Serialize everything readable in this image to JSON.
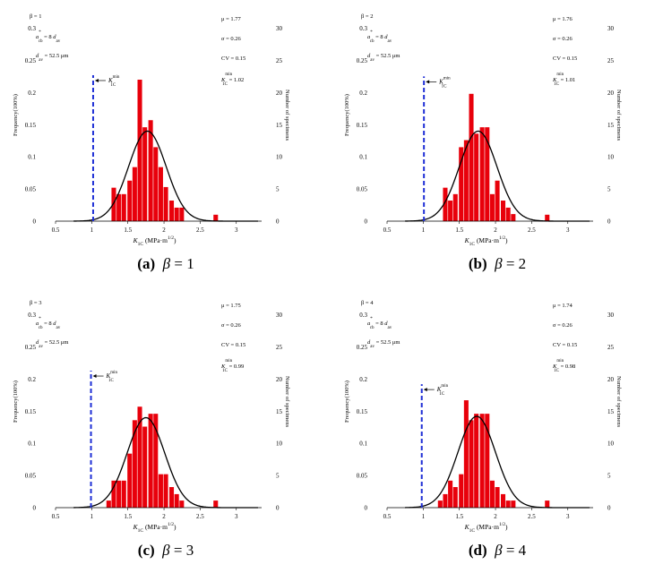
{
  "chart_data": [
    {
      "type": "bar",
      "panel_label": "(a)",
      "beta_value": "1",
      "title_greek": "β",
      "legend_left": {
        "beta": "β = 1",
        "ratio_a": "a",
        "ratio_sup": "*",
        "ratio_sub": "cb",
        "ratio_eq": "= 8",
        "ratio_d": "d",
        "ratio_d_sub": "av",
        "dav_d": "d",
        "dav_sub": "av",
        "dav_val": "= 52.5 μm"
      },
      "legend_right": {
        "mu": "μ = 1.77",
        "sigma": "σ = 0.26",
        "cv": "CV = 0.15",
        "k": "K",
        "k_sup": "min",
        "k_sub": "1C",
        "k_val": "= 1.02"
      },
      "kmin_label": "K",
      "kmin_sup": "min",
      "kmin_sub": "1C",
      "ylabel_left": "Frequency(100%)",
      "ylabel_right": "Number of specimens",
      "xlabel": {
        "k": "K",
        "k_sub": "1C",
        "unit": "(MPa·m",
        "unit_sup": "1/2",
        "close": ")"
      },
      "xlim": [
        0.5,
        3.35
      ],
      "ylim": [
        0,
        0.33
      ],
      "x_ticks": [
        "0.5",
        "1",
        "1.5",
        "2",
        "2.5",
        "3"
      ],
      "x_tick_values": [
        0.5,
        1,
        1.5,
        2,
        2.5,
        3
      ],
      "y_ticks": [
        "0",
        "0.05",
        "0.1",
        "0.15",
        "0.2",
        "0.25",
        "0.3"
      ],
      "y_tick_values": [
        0,
        0.05,
        0.1,
        0.15,
        0.2,
        0.25,
        0.3
      ],
      "y2_ticks": [
        "0",
        "5",
        "10",
        "15",
        "20",
        "25",
        "30"
      ],
      "kmin": 1.02,
      "kmin_line_top": 0.227,
      "mu": 1.77,
      "sigma": 0.26,
      "curve_peak": 0.14,
      "bin_width": 0.0725,
      "bins": [
        1.31,
        1.38,
        1.45,
        1.53,
        1.6,
        1.67,
        1.74,
        1.82,
        1.89,
        1.96,
        2.03,
        2.11,
        2.18,
        2.25,
        2.43,
        2.72
      ],
      "values": [
        0.052,
        0.042,
        0.042,
        0.063,
        0.084,
        0.22,
        0.146,
        0.157,
        0.115,
        0.084,
        0.053,
        0.032,
        0.021,
        0.021,
        0,
        0.01
      ]
    },
    {
      "type": "bar",
      "panel_label": "(b)",
      "beta_value": "2",
      "title_greek": "β",
      "legend_left": {
        "beta": "β = 2",
        "ratio_a": "a",
        "ratio_sup": "*",
        "ratio_sub": "cb",
        "ratio_eq": "= 8",
        "ratio_d": "d",
        "ratio_d_sub": "av",
        "dav_d": "d",
        "dav_sub": "av",
        "dav_val": "= 52.5 μm"
      },
      "legend_right": {
        "mu": "μ = 1.76",
        "sigma": "σ = 0.26",
        "cv": "CV = 0.15",
        "k": "K",
        "k_sup": "min",
        "k_sub": "1C",
        "k_val": "= 1.01"
      },
      "kmin_label": "K",
      "kmin_sup": "min",
      "kmin_sub": "1C",
      "ylabel_left": "Frequency(100%)",
      "ylabel_right": "Number of specimens",
      "xlabel": {
        "k": "K",
        "k_sub": "1C",
        "unit": "(MPa·m",
        "unit_sup": "1/2",
        "close": ")"
      },
      "xlim": [
        0.5,
        3.35
      ],
      "ylim": [
        0,
        0.33
      ],
      "x_ticks": [
        "0.5",
        "1",
        "1.5",
        "2",
        "2.5",
        "3"
      ],
      "x_tick_values": [
        0.5,
        1,
        1.5,
        2,
        2.5,
        3
      ],
      "y_ticks": [
        "0",
        "0.05",
        "0.1",
        "0.15",
        "0.2",
        "0.25",
        "0.3"
      ],
      "y_tick_values": [
        0,
        0.05,
        0.1,
        0.15,
        0.2,
        0.25,
        0.3
      ],
      "y2_ticks": [
        "0",
        "5",
        "10",
        "15",
        "20",
        "25",
        "30"
      ],
      "kmin": 1.01,
      "kmin_line_top": 0.225,
      "mu": 1.76,
      "sigma": 0.26,
      "curve_peak": 0.14,
      "bin_width": 0.0725,
      "bins": [
        1.31,
        1.38,
        1.45,
        1.53,
        1.6,
        1.67,
        1.74,
        1.82,
        1.89,
        1.96,
        2.03,
        2.11,
        2.18,
        2.25,
        2.43,
        2.72
      ],
      "values": [
        0.052,
        0.032,
        0.042,
        0.115,
        0.126,
        0.198,
        0.136,
        0.146,
        0.146,
        0.042,
        0.063,
        0.032,
        0.021,
        0.011,
        0,
        0.01
      ]
    },
    {
      "type": "bar",
      "panel_label": "(c)",
      "beta_value": "3",
      "title_greek": "β",
      "legend_left": {
        "beta": "β = 3",
        "ratio_a": "a",
        "ratio_sup": "*",
        "ratio_sub": "cb",
        "ratio_eq": "= 8",
        "ratio_d": "d",
        "ratio_d_sub": "av",
        "dav_d": "d",
        "dav_sub": "av",
        "dav_val": "= 52.5 μm"
      },
      "legend_right": {
        "mu": "μ = 1.75",
        "sigma": "σ = 0.26",
        "cv": "CV = 0.15",
        "k": "K",
        "k_sup": "min",
        "k_sub": "1C",
        "k_val": "= 0.99"
      },
      "kmin_label": "K",
      "kmin_sup": "min",
      "kmin_sub": "1C",
      "ylabel_left": "Frequency(100%)",
      "ylabel_right": "Number of specimens",
      "xlabel": {
        "k": "K",
        "k_sub": "1C",
        "unit": "(MPa·m",
        "unit_sup": "1/2",
        "close": ")"
      },
      "xlim": [
        0.5,
        3.35
      ],
      "ylim": [
        0,
        0.33
      ],
      "x_ticks": [
        "0.5",
        "1",
        "1.5",
        "2",
        "2.5",
        "3"
      ],
      "x_tick_values": [
        0.5,
        1,
        1.5,
        2,
        2.5,
        3
      ],
      "y_ticks": [
        "0",
        "0.05",
        "0.1",
        "0.15",
        "0.2",
        "0.25",
        "0.3"
      ],
      "y_tick_values": [
        0,
        0.05,
        0.1,
        0.15,
        0.2,
        0.25,
        0.3
      ],
      "y2_ticks": [
        "0",
        "5",
        "10",
        "15",
        "20",
        "25",
        "30"
      ],
      "kmin": 0.99,
      "kmin_line_top": 0.213,
      "mu": 1.75,
      "sigma": 0.26,
      "curve_peak": 0.14,
      "bin_width": 0.0725,
      "bins": [
        1.24,
        1.31,
        1.38,
        1.45,
        1.53,
        1.6,
        1.67,
        1.74,
        1.82,
        1.89,
        1.96,
        2.03,
        2.11,
        2.18,
        2.25,
        2.43,
        2.72
      ],
      "values": [
        0.011,
        0.042,
        0.042,
        0.042,
        0.084,
        0.136,
        0.157,
        0.126,
        0.146,
        0.146,
        0.052,
        0.052,
        0.032,
        0.021,
        0.011,
        0,
        0.011
      ]
    },
    {
      "type": "bar",
      "panel_label": "(d)",
      "beta_value": "4",
      "title_greek": "β",
      "legend_left": {
        "beta": "β = 4",
        "ratio_a": "a",
        "ratio_sup": "*",
        "ratio_sub": "cb",
        "ratio_eq": "= 8",
        "ratio_d": "d",
        "ratio_d_sub": "av",
        "dav_d": "d",
        "dav_sub": "av",
        "dav_val": "= 52.5 μm"
      },
      "legend_right": {
        "mu": "μ = 1.74",
        "sigma": "σ = 0.26",
        "cv": "CV = 0.15",
        "k": "K",
        "k_sup": "min",
        "k_sub": "1C",
        "k_val": "= 0.98"
      },
      "kmin_label": "K",
      "kmin_sup": "min",
      "kmin_sub": "1C",
      "ylabel_left": "Frequency(100%)",
      "ylabel_right": "Number of specimens",
      "xlabel": {
        "k": "K",
        "k_sub": "1C",
        "unit": "(MPa·m",
        "unit_sup": "1/2",
        "close": ")"
      },
      "xlim": [
        0.5,
        3.35
      ],
      "ylim": [
        0,
        0.33
      ],
      "x_ticks": [
        "0.5",
        "1",
        "1.5",
        "2",
        "2.5",
        "3"
      ],
      "x_tick_values": [
        0.5,
        1,
        1.5,
        2,
        2.5,
        3
      ],
      "y_ticks": [
        "0",
        "0.05",
        "0.1",
        "0.15",
        "0.2",
        "0.25",
        "0.3"
      ],
      "y_tick_values": [
        0,
        0.05,
        0.1,
        0.15,
        0.2,
        0.25,
        0.3
      ],
      "y2_ticks": [
        "0",
        "5",
        "10",
        "15",
        "20",
        "25",
        "30"
      ],
      "kmin": 0.98,
      "kmin_line_top": 0.192,
      "mu": 1.74,
      "sigma": 0.26,
      "curve_peak": 0.142,
      "bin_width": 0.0725,
      "bins": [
        1.24,
        1.31,
        1.38,
        1.45,
        1.53,
        1.6,
        1.67,
        1.74,
        1.82,
        1.89,
        1.96,
        2.03,
        2.11,
        2.18,
        2.25,
        2.43,
        2.72
      ],
      "values": [
        0.011,
        0.021,
        0.042,
        0.032,
        0.052,
        0.167,
        0.136,
        0.146,
        0.146,
        0.146,
        0.042,
        0.032,
        0.021,
        0.011,
        0.011,
        0,
        0.011
      ]
    }
  ]
}
